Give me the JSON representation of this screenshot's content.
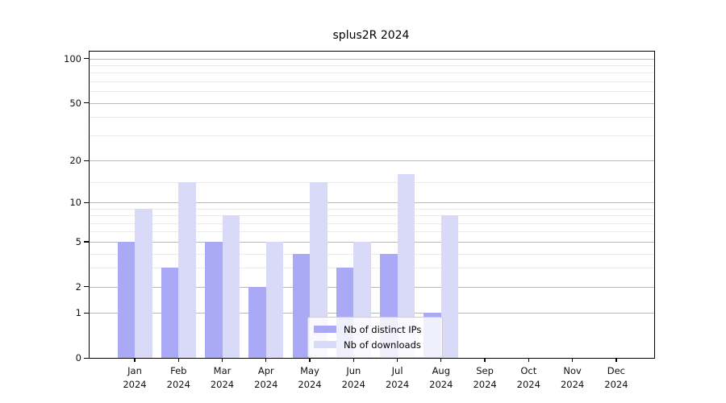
{
  "title": "splus2R 2024",
  "chart_data": {
    "type": "bar",
    "title": "splus2R 2024",
    "categories": [
      "Jan",
      "Feb",
      "Mar",
      "Apr",
      "May",
      "Jun",
      "Jul",
      "Aug",
      "Sep",
      "Oct",
      "Nov",
      "Dec"
    ],
    "year": "2024",
    "series": [
      {
        "name": "Nb of distinct IPs",
        "color": "#a9a9f5",
        "values": [
          5,
          3,
          5,
          2,
          4,
          3,
          4,
          1,
          0,
          0,
          0,
          0
        ]
      },
      {
        "name": "Nb of downloads",
        "color": "#d9d9f8",
        "values": [
          9,
          14,
          8,
          5,
          14,
          5,
          16,
          8,
          0,
          0,
          0,
          0
        ]
      }
    ],
    "y_axis": {
      "scale": "log10(1+x)",
      "ticks": [
        0,
        1,
        2,
        5,
        10,
        20,
        50,
        100
      ],
      "minor_gridlines": [
        3,
        4,
        6,
        7,
        8,
        9,
        14,
        30,
        40,
        60,
        70,
        80,
        90
      ],
      "max": 100
    },
    "x_axis": {
      "tick_label_format": "month over year"
    },
    "legend": {
      "position": "inside-bottom-center",
      "entries": [
        "Nb of distinct IPs",
        "Nb of downloads"
      ]
    },
    "grid": true,
    "colors": {
      "distinct_ips": "#a9a9f5",
      "downloads": "#d9d9f8",
      "grid_major": "#b8b8b8",
      "grid_minor": "#ebebeb",
      "axis": "#000000",
      "background": "#ffffff"
    }
  },
  "legend": {
    "ips_label": "Nb of distinct IPs",
    "downloads_label": "Nb of downloads"
  }
}
